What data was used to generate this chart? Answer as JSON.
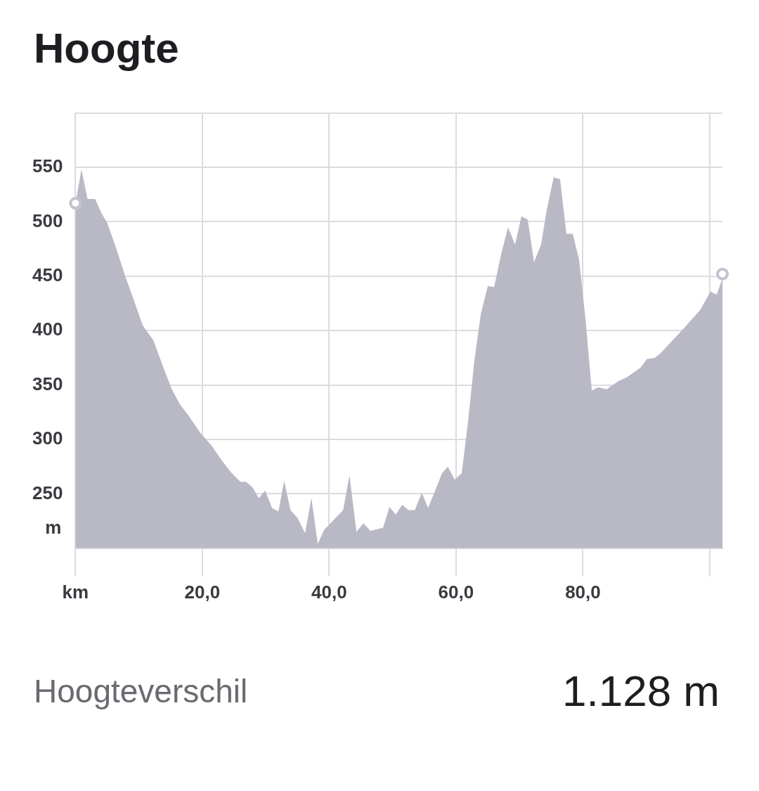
{
  "chart_data": {
    "type": "area",
    "title": "Hoogte",
    "ylabel": "m",
    "x": [
      0,
      0.95,
      1.9,
      3.1,
      4.1,
      5.0,
      6.4,
      7.9,
      9.5,
      10.6,
      11.3,
      12.3,
      13.8,
      15.2,
      16.5,
      17.7,
      19.7,
      21.5,
      22.9,
      24.5,
      26.0,
      26.9,
      27.9,
      28.9,
      29.9,
      31.0,
      32.0,
      32.9,
      33.9,
      35.0,
      36.2,
      37.2,
      38.2,
      39.2,
      42.2,
      43.2,
      44.3,
      45.4,
      46.5,
      48.5,
      49.5,
      50.5,
      51.5,
      52.5,
      53.5,
      54.6,
      55.6,
      57.8,
      58.7,
      59.8,
      60.9,
      61.9,
      62.9,
      63.9,
      65.0,
      66.0,
      67.1,
      68.2,
      69.3,
      70.3,
      71.3,
      72.3,
      73.4,
      74.3,
      75.4,
      76.4,
      77.4,
      78.4,
      79.4,
      80.4,
      81.4,
      82.4,
      83.7,
      85.7,
      86.9,
      89.1,
      90.1,
      91.3,
      92.2,
      95.9,
      98.5,
      100.1,
      101.1,
      102.0
    ],
    "series": [
      {
        "color": "#b9b9c6",
        "values": [
          517,
          548,
          521,
          521,
          508,
          499,
          476,
          449,
          423,
          405,
          399,
          391,
          367,
          346,
          332,
          323,
          306,
          294,
          282,
          270,
          261,
          261,
          256,
          246,
          253,
          237,
          234,
          262,
          235,
          228,
          214,
          246,
          204,
          217,
          235,
          267,
          215,
          223,
          216,
          219,
          238,
          231,
          240,
          235,
          235,
          251,
          237,
          269,
          275,
          263,
          269,
          317,
          373,
          415,
          441,
          440,
          470,
          495,
          479,
          505,
          502,
          463,
          479,
          511,
          541,
          539,
          489,
          489,
          465,
          411,
          345,
          348,
          346,
          354,
          357,
          366,
          374,
          375,
          379,
          402,
          419,
          436,
          433,
          448
        ]
      },
      {
        "type": "scatter",
        "marker": "circle",
        "color": "#c3c2cf",
        "x": [
          0,
          102.0
        ],
        "values": [
          517,
          452
        ]
      }
    ],
    "xlim": [
      0,
      102
    ],
    "xticks": [
      {
        "value": 0,
        "label": "km"
      },
      {
        "value": 20,
        "label": "20,0"
      },
      {
        "value": 40,
        "label": "40,0"
      },
      {
        "value": 60,
        "label": "60,0"
      },
      {
        "value": 80,
        "label": "80,0"
      },
      {
        "value": 100,
        "label": null
      }
    ],
    "ylim": [
      200,
      600
    ],
    "yticks": [
      {
        "value": 200,
        "label": null
      },
      250,
      300,
      350,
      400,
      450,
      500,
      550,
      {
        "value": 600,
        "label": null
      }
    ],
    "grid": true,
    "legend": false,
    "annotations": [
      "Hoogteverschil",
      "1.128 m"
    ]
  }
}
